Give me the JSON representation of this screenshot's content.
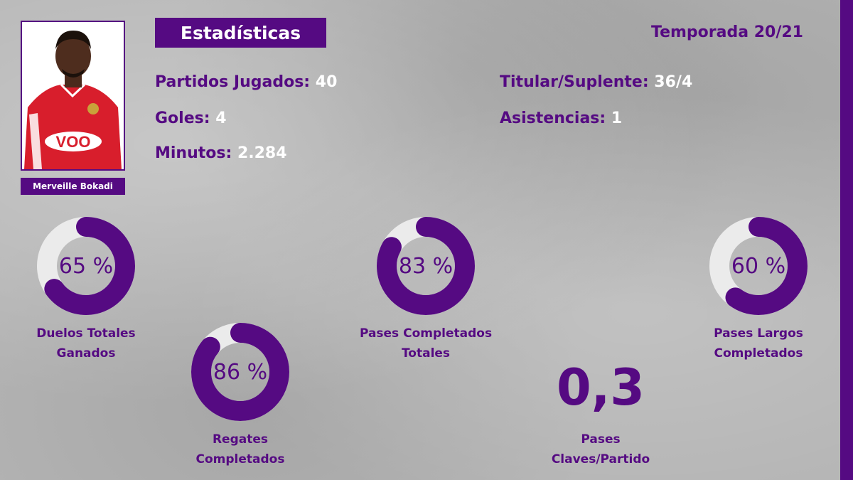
{
  "colors": {
    "accent": "#550a82",
    "ring_track": "#ebebeb",
    "value_text": "#ffffff"
  },
  "player": {
    "name": "Merveille Bokadi",
    "shirt_sponsor": "VOO"
  },
  "header": {
    "title": "Estadísticas",
    "season": "Temporada 20/21"
  },
  "stats": {
    "partidos": {
      "label": "Partidos Jugados:",
      "value": "40"
    },
    "goles": {
      "label": "Goles:",
      "value": "4"
    },
    "minutos": {
      "label": "Minutos:",
      "value": "2.284"
    },
    "titular": {
      "label": "Titular/Suplente:",
      "value": "36/4"
    },
    "asistencias": {
      "label": "Asistencias:",
      "value": "1"
    }
  },
  "donuts": [
    {
      "value": 65,
      "text": "65 %",
      "caption_line1": "Duelos Totales",
      "caption_line2": "Ganados"
    },
    {
      "value": 86,
      "text": "86 %",
      "caption_line1": "Regates",
      "caption_line2": "Completados"
    },
    {
      "value": 83,
      "text": "83 %",
      "caption_line1": "Pases Completados",
      "caption_line2": "Totales"
    },
    {
      "value": 60,
      "text": "60 %",
      "caption_line1": "Pases Largos",
      "caption_line2": "Completados"
    }
  ],
  "key_passes": {
    "value": "0,3",
    "caption_line1": "Pases",
    "caption_line2": "Claves/Partido"
  }
}
